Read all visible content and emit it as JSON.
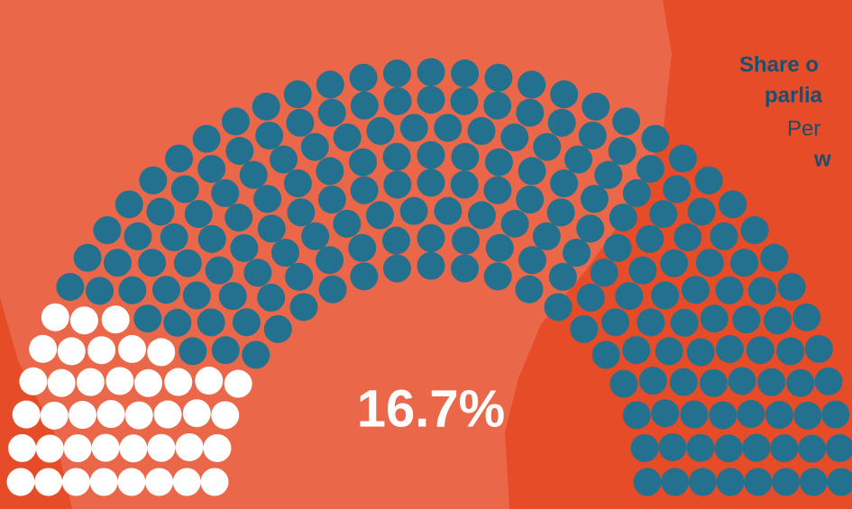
{
  "chart_data": {
    "type": "parliament",
    "title_lines": [
      "Share o",
      "parlia",
      "Per",
      "w"
    ],
    "seats": [
      40,
      200
    ],
    "colors": [
      "#ffffff",
      "#23718f"
    ],
    "share": {
      "value": 16.7,
      "label": "16.7%"
    },
    "background": "#e64c28",
    "text_color": "#1d4e6e"
  }
}
